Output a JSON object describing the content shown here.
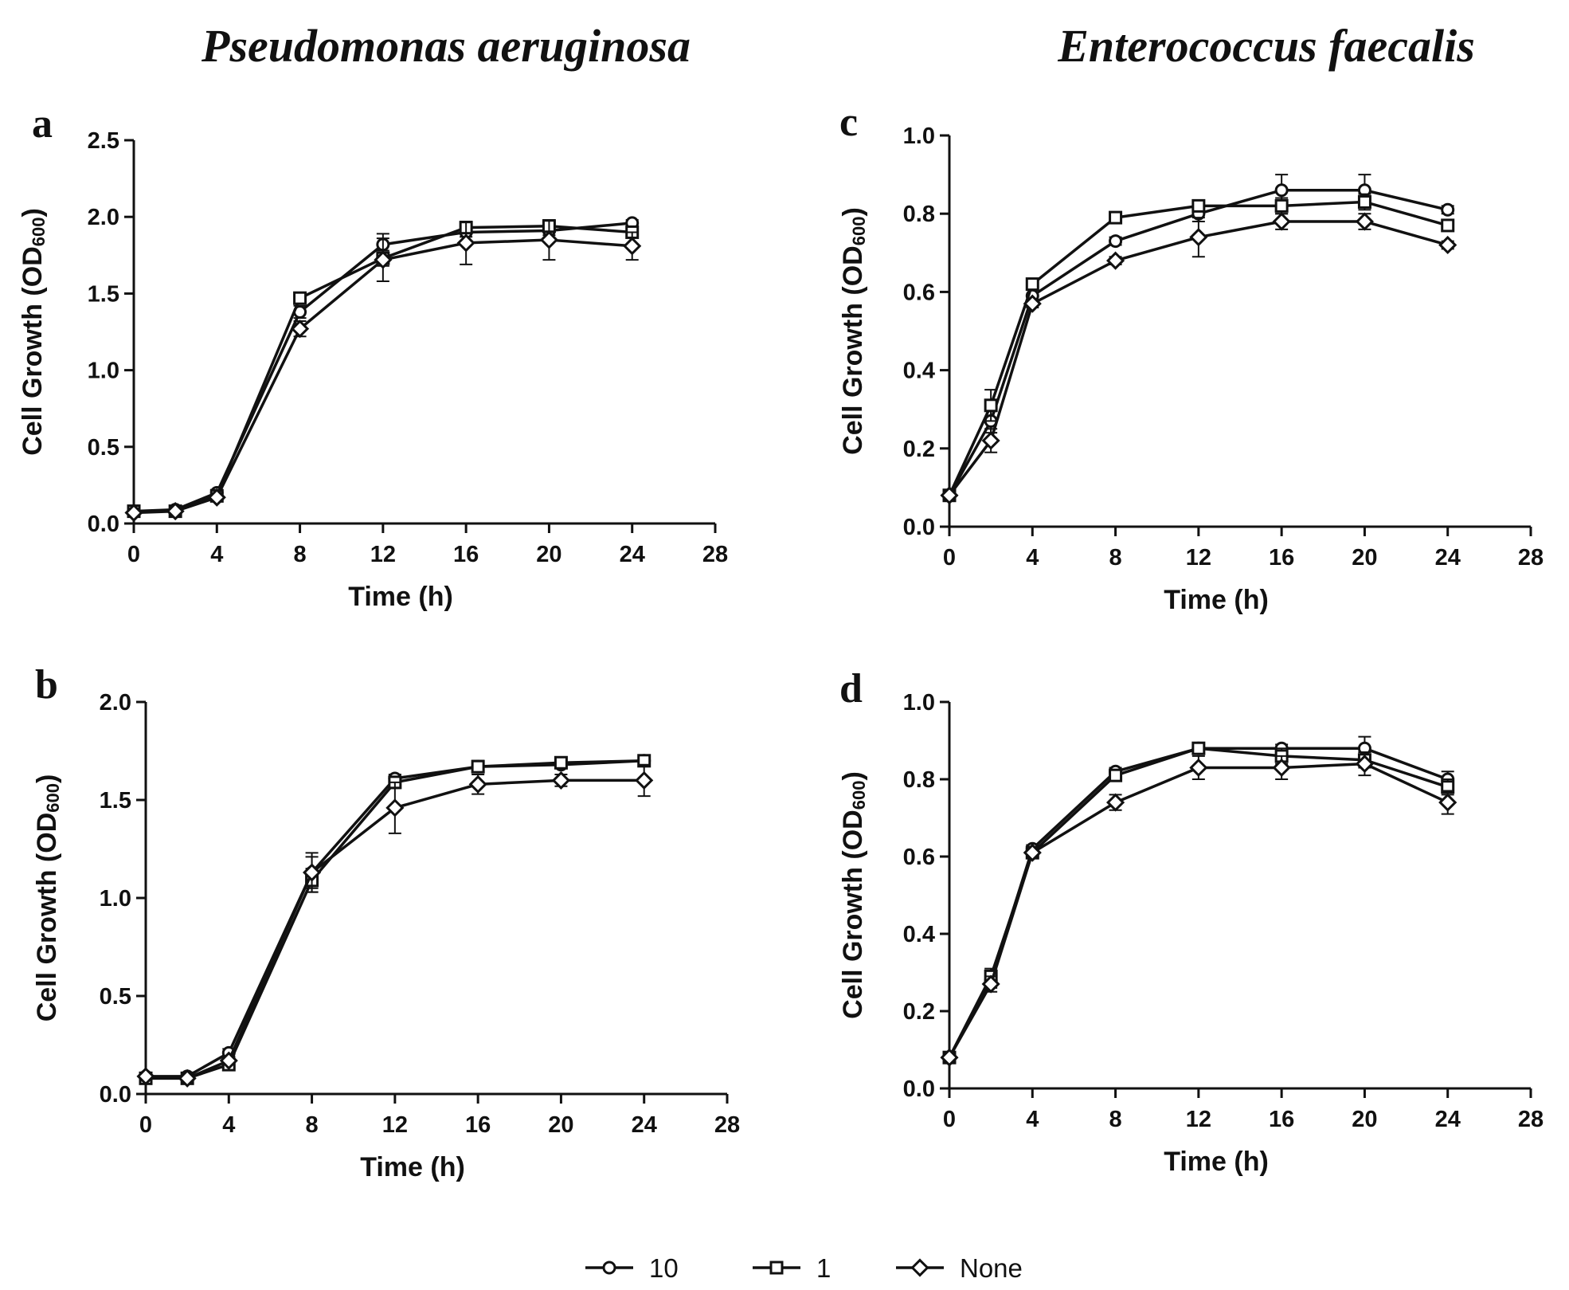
{
  "titles": {
    "left": "Pseudomonas aeruginosa",
    "right": "Enterococcus faecalis"
  },
  "legend": [
    {
      "label": "10",
      "marker": "circle"
    },
    {
      "label": "1",
      "marker": "square"
    },
    {
      "label": "None",
      "marker": "diamond"
    }
  ],
  "chart_data": [
    {
      "type": "line",
      "panel": "a",
      "organism": "Pseudomonas aeruginosa",
      "xlabel": "Time (h)",
      "ylabel": "Cell Growth (OD600)",
      "xlim": [
        0,
        28
      ],
      "ylim": [
        0,
        2.5
      ],
      "xticks": [
        "0",
        "4",
        "8",
        "12",
        "16",
        "20",
        "24",
        "28"
      ],
      "yticks": [
        "0.0",
        "0.5",
        "1.0",
        "1.5",
        "2.0",
        "2.5"
      ],
      "x": [
        0,
        2,
        4,
        8,
        12,
        16,
        20,
        24
      ],
      "series": [
        {
          "name": "10",
          "marker": "circle",
          "values": [
            0.08,
            0.09,
            0.2,
            1.38,
            1.82,
            1.9,
            1.91,
            1.96
          ],
          "errors": [
            0.01,
            0.01,
            0.02,
            0.04,
            0.07,
            0.03,
            0.03,
            0.02
          ]
        },
        {
          "name": "1",
          "marker": "square",
          "values": [
            0.08,
            0.08,
            0.18,
            1.47,
            1.73,
            1.93,
            1.94,
            1.9
          ],
          "errors": [
            0.01,
            0.01,
            0.02,
            0.03,
            0.05,
            0.03,
            0.04,
            0.03
          ]
        },
        {
          "name": "None",
          "marker": "diamond",
          "values": [
            0.07,
            0.08,
            0.17,
            1.27,
            1.72,
            1.83,
            1.85,
            1.81
          ],
          "errors": [
            0.01,
            0.01,
            0.02,
            0.05,
            0.14,
            0.14,
            0.13,
            0.09
          ]
        }
      ]
    },
    {
      "type": "line",
      "panel": "b",
      "organism": "Pseudomonas aeruginosa",
      "xlabel": "Time (h)",
      "ylabel": "Cell Growth (OD600)",
      "xlim": [
        0,
        28
      ],
      "ylim": [
        0,
        2.0
      ],
      "xticks": [
        "0",
        "4",
        "8",
        "12",
        "16",
        "20",
        "24",
        "28"
      ],
      "yticks": [
        "0.0",
        "0.5",
        "1.0",
        "1.5",
        "2.0"
      ],
      "x": [
        0,
        2,
        4,
        8,
        12,
        16,
        20,
        24
      ],
      "series": [
        {
          "name": "10",
          "marker": "circle",
          "values": [
            0.09,
            0.09,
            0.21,
            1.13,
            1.61,
            1.67,
            1.68,
            1.7
          ],
          "errors": [
            0.01,
            0.01,
            0.02,
            0.1,
            0.02,
            0.03,
            0.02,
            0.02
          ]
        },
        {
          "name": "1",
          "marker": "square",
          "values": [
            0.08,
            0.08,
            0.15,
            1.09,
            1.59,
            1.67,
            1.69,
            1.7
          ],
          "errors": [
            0.01,
            0.01,
            0.02,
            0.06,
            0.03,
            0.03,
            0.02,
            0.02
          ]
        },
        {
          "name": "None",
          "marker": "diamond",
          "values": [
            0.09,
            0.08,
            0.17,
            1.13,
            1.46,
            1.58,
            1.6,
            1.6
          ],
          "errors": [
            0.01,
            0.01,
            0.02,
            0.08,
            0.13,
            0.05,
            0.03,
            0.08
          ]
        }
      ]
    },
    {
      "type": "line",
      "panel": "c",
      "organism": "Enterococcus faecalis",
      "xlabel": "Time (h)",
      "ylabel": "Cell Growth (OD600)",
      "xlim": [
        0,
        28
      ],
      "ylim": [
        0,
        1.0
      ],
      "xticks": [
        "0",
        "4",
        "8",
        "12",
        "16",
        "20",
        "24",
        "28"
      ],
      "yticks": [
        "0.0",
        "0.2",
        "0.4",
        "0.6",
        "0.8",
        "1.0"
      ],
      "x": [
        0,
        2,
        4,
        8,
        12,
        16,
        20,
        24
      ],
      "series": [
        {
          "name": "10",
          "marker": "circle",
          "values": [
            0.08,
            0.27,
            0.59,
            0.73,
            0.8,
            0.86,
            0.86,
            0.81
          ],
          "errors": [
            0.01,
            0.03,
            0.02,
            0.01,
            0.02,
            0.04,
            0.04,
            0.01
          ]
        },
        {
          "name": "1",
          "marker": "square",
          "values": [
            0.08,
            0.31,
            0.62,
            0.79,
            0.82,
            0.82,
            0.83,
            0.77
          ],
          "errors": [
            0.01,
            0.04,
            0.01,
            0.01,
            0.01,
            0.02,
            0.02,
            0.01
          ]
        },
        {
          "name": "None",
          "marker": "diamond",
          "values": [
            0.08,
            0.22,
            0.57,
            0.68,
            0.74,
            0.78,
            0.78,
            0.72
          ],
          "errors": [
            0.01,
            0.03,
            0.01,
            0.01,
            0.05,
            0.02,
            0.02,
            0.01
          ]
        }
      ]
    },
    {
      "type": "line",
      "panel": "d",
      "organism": "Enterococcus faecalis",
      "xlabel": "Time (h)",
      "ylabel": "Cell Growth (OD600)",
      "xlim": [
        0,
        28
      ],
      "ylim": [
        0,
        1.0
      ],
      "xticks": [
        "0",
        "4",
        "8",
        "12",
        "16",
        "20",
        "24",
        "28"
      ],
      "yticks": [
        "0.0",
        "0.2",
        "0.4",
        "0.6",
        "0.8",
        "1.0"
      ],
      "x": [
        0,
        2,
        4,
        8,
        12,
        16,
        20,
        24
      ],
      "series": [
        {
          "name": "10",
          "marker": "circle",
          "values": [
            0.08,
            0.28,
            0.62,
            0.82,
            0.88,
            0.88,
            0.88,
            0.8
          ],
          "errors": [
            0.01,
            0.02,
            0.01,
            0.01,
            0.01,
            0.01,
            0.03,
            0.02
          ]
        },
        {
          "name": "1",
          "marker": "square",
          "values": [
            0.08,
            0.29,
            0.61,
            0.81,
            0.88,
            0.86,
            0.85,
            0.78
          ],
          "errors": [
            0.01,
            0.02,
            0.01,
            0.01,
            0.01,
            0.02,
            0.02,
            0.02
          ]
        },
        {
          "name": "None",
          "marker": "diamond",
          "values": [
            0.08,
            0.27,
            0.61,
            0.74,
            0.83,
            0.83,
            0.84,
            0.74
          ],
          "errors": [
            0.01,
            0.02,
            0.01,
            0.02,
            0.03,
            0.03,
            0.03,
            0.03
          ]
        }
      ]
    }
  ]
}
